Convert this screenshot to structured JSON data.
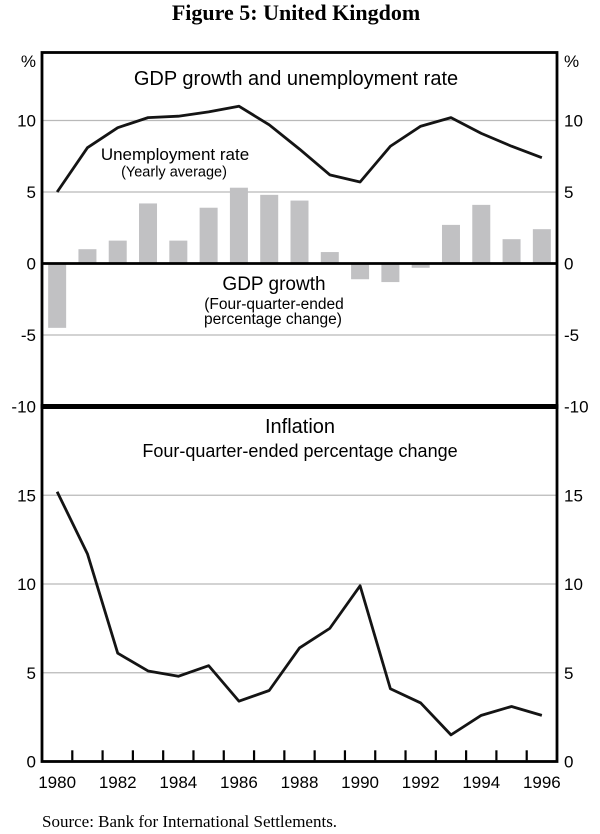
{
  "figure": {
    "title": "Figure 5: United Kingdom"
  },
  "source_note": "Source: Bank for International Settlements.",
  "colors": {
    "bar": "#c1c1c3",
    "grid": "#b9b9b9",
    "line": "#141414",
    "frame": "#000000",
    "text": "#000000"
  },
  "x_axis": {
    "years": [
      1980,
      1981,
      1982,
      1983,
      1984,
      1985,
      1986,
      1987,
      1988,
      1989,
      1990,
      1991,
      1992,
      1993,
      1994,
      1995,
      1996
    ],
    "tick_labels": [
      "1980",
      "1982",
      "1984",
      "1986",
      "1988",
      "1990",
      "1992",
      "1994",
      "1996"
    ]
  },
  "chart_data": [
    {
      "type": "combo",
      "panel": "top",
      "title": "GDP growth and unemployment rate",
      "y_unit": "%",
      "ylim": [
        -10,
        14.8
      ],
      "grid": "on",
      "gridlines": [
        10,
        5,
        -5
      ],
      "zero_line": true,
      "y_ticks": [
        {
          "v": 10,
          "label": "10"
        },
        {
          "v": 5,
          "label": "5"
        },
        {
          "v": 0,
          "label": "0"
        },
        {
          "v": -5,
          "label": "-5"
        },
        {
          "v": -10,
          "label": "-10"
        }
      ],
      "categories": [
        1980,
        1981,
        1982,
        1983,
        1984,
        1985,
        1986,
        1987,
        1988,
        1989,
        1990,
        1991,
        1992,
        1993,
        1994,
        1995,
        1996
      ],
      "series": [
        {
          "name": "Unemployment rate",
          "subtitle": "(Yearly average)",
          "type": "line",
          "values": [
            5.0,
            8.1,
            9.5,
            10.2,
            10.3,
            10.6,
            11.0,
            9.7,
            8.0,
            6.2,
            5.7,
            8.2,
            9.6,
            10.2,
            9.1,
            8.2,
            7.4
          ]
        },
        {
          "name": "GDP growth",
          "subtitle_lines": [
            "(Four-quarter-ended",
            "percentage change)"
          ],
          "type": "bar",
          "values": [
            -4.5,
            1.0,
            1.6,
            4.2,
            1.6,
            3.9,
            5.3,
            4.8,
            4.4,
            0.8,
            -1.1,
            -1.3,
            -0.3,
            2.7,
            4.1,
            1.7,
            2.4
          ]
        }
      ]
    },
    {
      "type": "line",
      "panel": "bottom",
      "title": "Inflation",
      "subtitle": "Four-quarter-ended percentage change",
      "ylim": [
        0,
        20
      ],
      "grid": "on",
      "gridlines": [
        15,
        10,
        5
      ],
      "y_ticks": [
        {
          "v": 15,
          "label": "15"
        },
        {
          "v": 10,
          "label": "10"
        },
        {
          "v": 5,
          "label": "5"
        },
        {
          "v": 0,
          "label": "0"
        }
      ],
      "categories": [
        1980,
        1981,
        1982,
        1983,
        1984,
        1985,
        1986,
        1987,
        1988,
        1989,
        1990,
        1991,
        1992,
        1993,
        1994,
        1995,
        1996
      ],
      "series": [
        {
          "name": "Inflation",
          "type": "line",
          "values": [
            15.2,
            11.7,
            6.1,
            5.1,
            4.8,
            5.4,
            3.4,
            4.0,
            6.4,
            7.5,
            9.9,
            4.1,
            3.3,
            1.5,
            2.6,
            3.1,
            2.6
          ]
        }
      ]
    }
  ]
}
